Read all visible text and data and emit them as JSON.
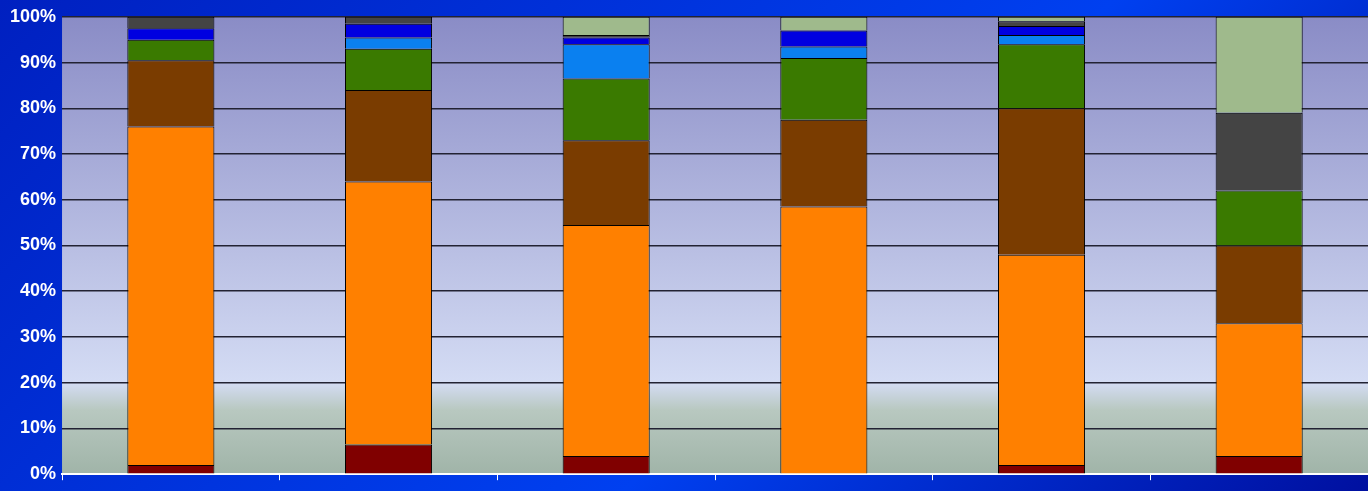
{
  "chart_data": {
    "type": "bar",
    "stacked": true,
    "categories": [
      null,
      null,
      null,
      null,
      null,
      null
    ],
    "series": [
      {
        "color": "#800000",
        "values": [
          2,
          6.5,
          4,
          0,
          2,
          4
        ]
      },
      {
        "color": "#ff8000",
        "values": [
          74,
          57.5,
          50.5,
          58.5,
          46,
          29
        ]
      },
      {
        "color": "#7a3c00",
        "values": [
          14.5,
          20,
          18.5,
          19,
          32,
          17
        ]
      },
      {
        "color": "#3a7a00",
        "values": [
          4.5,
          9,
          13.5,
          13.5,
          14,
          12
        ]
      },
      {
        "color": "#0a80f0",
        "values": [
          0,
          2.5,
          7.5,
          2.5,
          2,
          0
        ]
      },
      {
        "color": "#0000e0",
        "values": [
          2.5,
          3,
          1.5,
          3.5,
          2,
          0
        ]
      },
      {
        "color": "#444444",
        "values": [
          2.5,
          1.5,
          0.5,
          0,
          1,
          17
        ]
      },
      {
        "color": "#9fba8c",
        "values": [
          0,
          0,
          4,
          3,
          1,
          21
        ]
      }
    ],
    "ylim": [
      0,
      100
    ],
    "yticks": [
      {
        "value": 0,
        "label": "0%"
      },
      {
        "value": 10,
        "label": "10%"
      },
      {
        "value": 20,
        "label": "20%"
      },
      {
        "value": 30,
        "label": "30%"
      },
      {
        "value": 40,
        "label": "40%"
      },
      {
        "value": 50,
        "label": "50%"
      },
      {
        "value": 60,
        "label": "60%"
      },
      {
        "value": 70,
        "label": "70%"
      },
      {
        "value": 80,
        "label": "80%"
      },
      {
        "value": 90,
        "label": "90%"
      },
      {
        "value": 100,
        "label": "100%"
      }
    ],
    "grid": "y",
    "legend": false,
    "tick_labels": "y"
  }
}
